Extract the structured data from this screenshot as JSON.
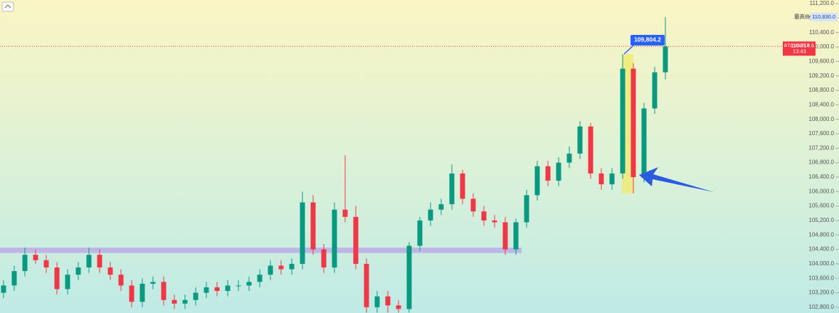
{
  "chart_data": {
    "type": "candlestick",
    "up_color": "#089981",
    "down_color": "#f23645",
    "ylim": [
      102640,
      111300
    ],
    "yticks": [
      {
        "value": 102800,
        "label": "102,800.0"
      },
      {
        "value": 103200,
        "label": "103,200.0"
      },
      {
        "value": 103600,
        "label": "103,600.0"
      },
      {
        "value": 104000,
        "label": "104,000.0"
      },
      {
        "value": 104400,
        "label": "104,400.0"
      },
      {
        "value": 104800,
        "label": "104,800.0"
      },
      {
        "value": 105200,
        "label": "105,200.0"
      },
      {
        "value": 105600,
        "label": "105,600.0"
      },
      {
        "value": 106000,
        "label": "106,000.0"
      },
      {
        "value": 106400,
        "label": "106,400.0"
      },
      {
        "value": 106800,
        "label": "106,800.0"
      },
      {
        "value": 107200,
        "label": "107,200.0"
      },
      {
        "value": 107600,
        "label": "107,600.0"
      },
      {
        "value": 108000,
        "label": "108,000.0"
      },
      {
        "value": 108400,
        "label": "108,400.0"
      },
      {
        "value": 108800,
        "label": "108,800.0"
      },
      {
        "value": 109200,
        "label": "109,200.0"
      },
      {
        "value": 109600,
        "label": "109,600.0"
      },
      {
        "value": 110000,
        "label": "110,000.0"
      },
      {
        "value": 110400,
        "label": "110,400.0"
      },
      {
        "value": 110800,
        "label": "110,800.0"
      },
      {
        "value": 111200,
        "label": "111,200.0"
      }
    ],
    "open": [
      103200,
      103400,
      103800,
      104250,
      104100,
      103900,
      103300,
      103700,
      103900,
      104250,
      103900,
      103700,
      103400,
      102950,
      103450,
      103500,
      103000,
      102900,
      103000,
      103200,
      103350,
      103250,
      103400,
      103400,
      103500,
      103700,
      103950,
      103850,
      104000,
      105700,
      104400,
      103900,
      105500,
      105300,
      104000,
      102800,
      103100,
      102850,
      102750,
      104500,
      105200,
      105500,
      105650,
      106500,
      105800,
      105450,
      105200,
      105150,
      104400,
      105150,
      105900,
      106700,
      106300,
      106800,
      107050,
      107800,
      106500,
      106200,
      106500,
      109400,
      106400,
      108300,
      109300
    ],
    "high": [
      103550,
      103950,
      104450,
      104400,
      104250,
      104050,
      103850,
      104050,
      104450,
      104400,
      104050,
      103850,
      103550,
      103600,
      103650,
      103650,
      103150,
      103150,
      103350,
      103500,
      103500,
      103550,
      103550,
      103650,
      103850,
      104100,
      104100,
      104150,
      106000,
      105900,
      104550,
      105700,
      107000,
      105600,
      104150,
      103250,
      103250,
      103000,
      104600,
      105300,
      105700,
      105800,
      106750,
      106600,
      105950,
      105600,
      105350,
      105300,
      105250,
      106050,
      106850,
      106850,
      106950,
      107250,
      107950,
      107900,
      106650,
      106650,
      109800,
      109550,
      108450,
      109450,
      110830
    ],
    "low": [
      103050,
      103250,
      103650,
      104000,
      103750,
      103150,
      103150,
      103550,
      103750,
      103750,
      103550,
      103250,
      102800,
      102800,
      103300,
      102850,
      102750,
      102750,
      102850,
      103050,
      103100,
      103100,
      103250,
      103250,
      103350,
      103550,
      103700,
      103700,
      103850,
      104250,
      103750,
      103750,
      105150,
      103850,
      102650,
      102650,
      102650,
      102650,
      102650,
      104350,
      105050,
      105350,
      105500,
      105650,
      105300,
      105050,
      105000,
      104250,
      104250,
      105000,
      105750,
      106150,
      106150,
      106650,
      106900,
      106350,
      106050,
      106050,
      106350,
      105950,
      106250,
      108150,
      109100
    ],
    "close": [
      103400,
      103800,
      104250,
      104100,
      103900,
      103300,
      103700,
      103900,
      104250,
      103900,
      103700,
      103400,
      102950,
      103450,
      103500,
      103000,
      102900,
      103000,
      103200,
      103350,
      103250,
      103400,
      103400,
      103500,
      103700,
      103950,
      103850,
      104000,
      105700,
      104400,
      103900,
      105500,
      105300,
      104000,
      102800,
      103100,
      102850,
      102750,
      104500,
      105200,
      105500,
      105650,
      106500,
      105800,
      105450,
      105200,
      105150,
      104400,
      105150,
      105900,
      106700,
      106300,
      106800,
      107050,
      107800,
      106500,
      106200,
      106500,
      109400,
      106400,
      108300,
      109300,
      110014.6
    ],
    "support_zone": [
      104300,
      104450
    ],
    "highlight_zone": [
      105950,
      109800
    ],
    "high_marker": {
      "label": "最高价",
      "price": 110830,
      "price_label": "110,830.0"
    },
    "last_price": {
      "symbol": "BTCUSDT.P",
      "price": 110014.6,
      "price_label": "110,014.6",
      "countdown": "13:43"
    },
    "callout": {
      "price": 109804.2,
      "label": "109,804.2"
    }
  }
}
